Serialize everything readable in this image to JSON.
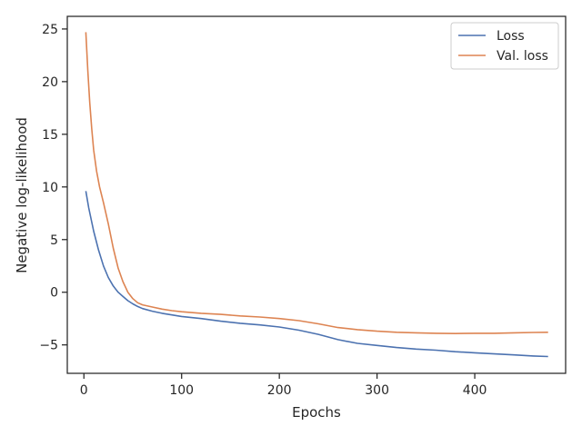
{
  "chart_data": {
    "type": "line",
    "xlabel": "Epochs",
    "ylabel": "Negative log-likelihood",
    "xlim": [
      -17,
      493
    ],
    "ylim": [
      -7.7,
      26.2
    ],
    "xticks": [
      0,
      100,
      200,
      300,
      400
    ],
    "yticks": [
      -5,
      0,
      5,
      10,
      15,
      20,
      25
    ],
    "xtick_labels": [
      "0",
      "100",
      "200",
      "300",
      "400"
    ],
    "ytick_labels": [
      "−5",
      "0",
      "5",
      "10",
      "15",
      "20",
      "25"
    ],
    "grid": false,
    "legend_position": "top-right",
    "series": [
      {
        "name": "Loss",
        "color": "#4c72b0",
        "x": [
          2,
          5,
          10,
          15,
          20,
          25,
          30,
          35,
          40,
          45,
          50,
          55,
          60,
          70,
          80,
          90,
          100,
          120,
          140,
          160,
          180,
          200,
          220,
          240,
          260,
          280,
          300,
          320,
          340,
          360,
          380,
          400,
          420,
          440,
          460,
          475
        ],
        "y": [
          9.6,
          8.0,
          5.8,
          4.0,
          2.5,
          1.4,
          0.6,
          0.0,
          -0.4,
          -0.8,
          -1.1,
          -1.35,
          -1.55,
          -1.8,
          -2.0,
          -2.15,
          -2.3,
          -2.5,
          -2.75,
          -2.95,
          -3.1,
          -3.3,
          -3.6,
          -4.0,
          -4.5,
          -4.85,
          -5.05,
          -5.25,
          -5.4,
          -5.5,
          -5.65,
          -5.75,
          -5.85,
          -5.95,
          -6.05,
          -6.1
        ]
      },
      {
        "name": "Val. loss",
        "color": "#dd8452",
        "x": [
          2,
          4,
          6,
          8,
          10,
          13,
          16,
          20,
          25,
          30,
          35,
          40,
          45,
          50,
          55,
          60,
          70,
          80,
          90,
          100,
          120,
          140,
          160,
          180,
          200,
          220,
          240,
          260,
          280,
          300,
          320,
          340,
          360,
          380,
          400,
          420,
          440,
          460,
          475
        ],
        "y": [
          24.7,
          21.0,
          18.0,
          15.5,
          13.5,
          11.5,
          10.0,
          8.5,
          6.5,
          4.2,
          2.3,
          1.0,
          0.0,
          -0.6,
          -1.0,
          -1.2,
          -1.4,
          -1.6,
          -1.75,
          -1.85,
          -2.0,
          -2.1,
          -2.25,
          -2.35,
          -2.5,
          -2.7,
          -3.0,
          -3.35,
          -3.55,
          -3.7,
          -3.8,
          -3.85,
          -3.9,
          -3.92,
          -3.9,
          -3.9,
          -3.85,
          -3.82,
          -3.8
        ]
      }
    ]
  }
}
